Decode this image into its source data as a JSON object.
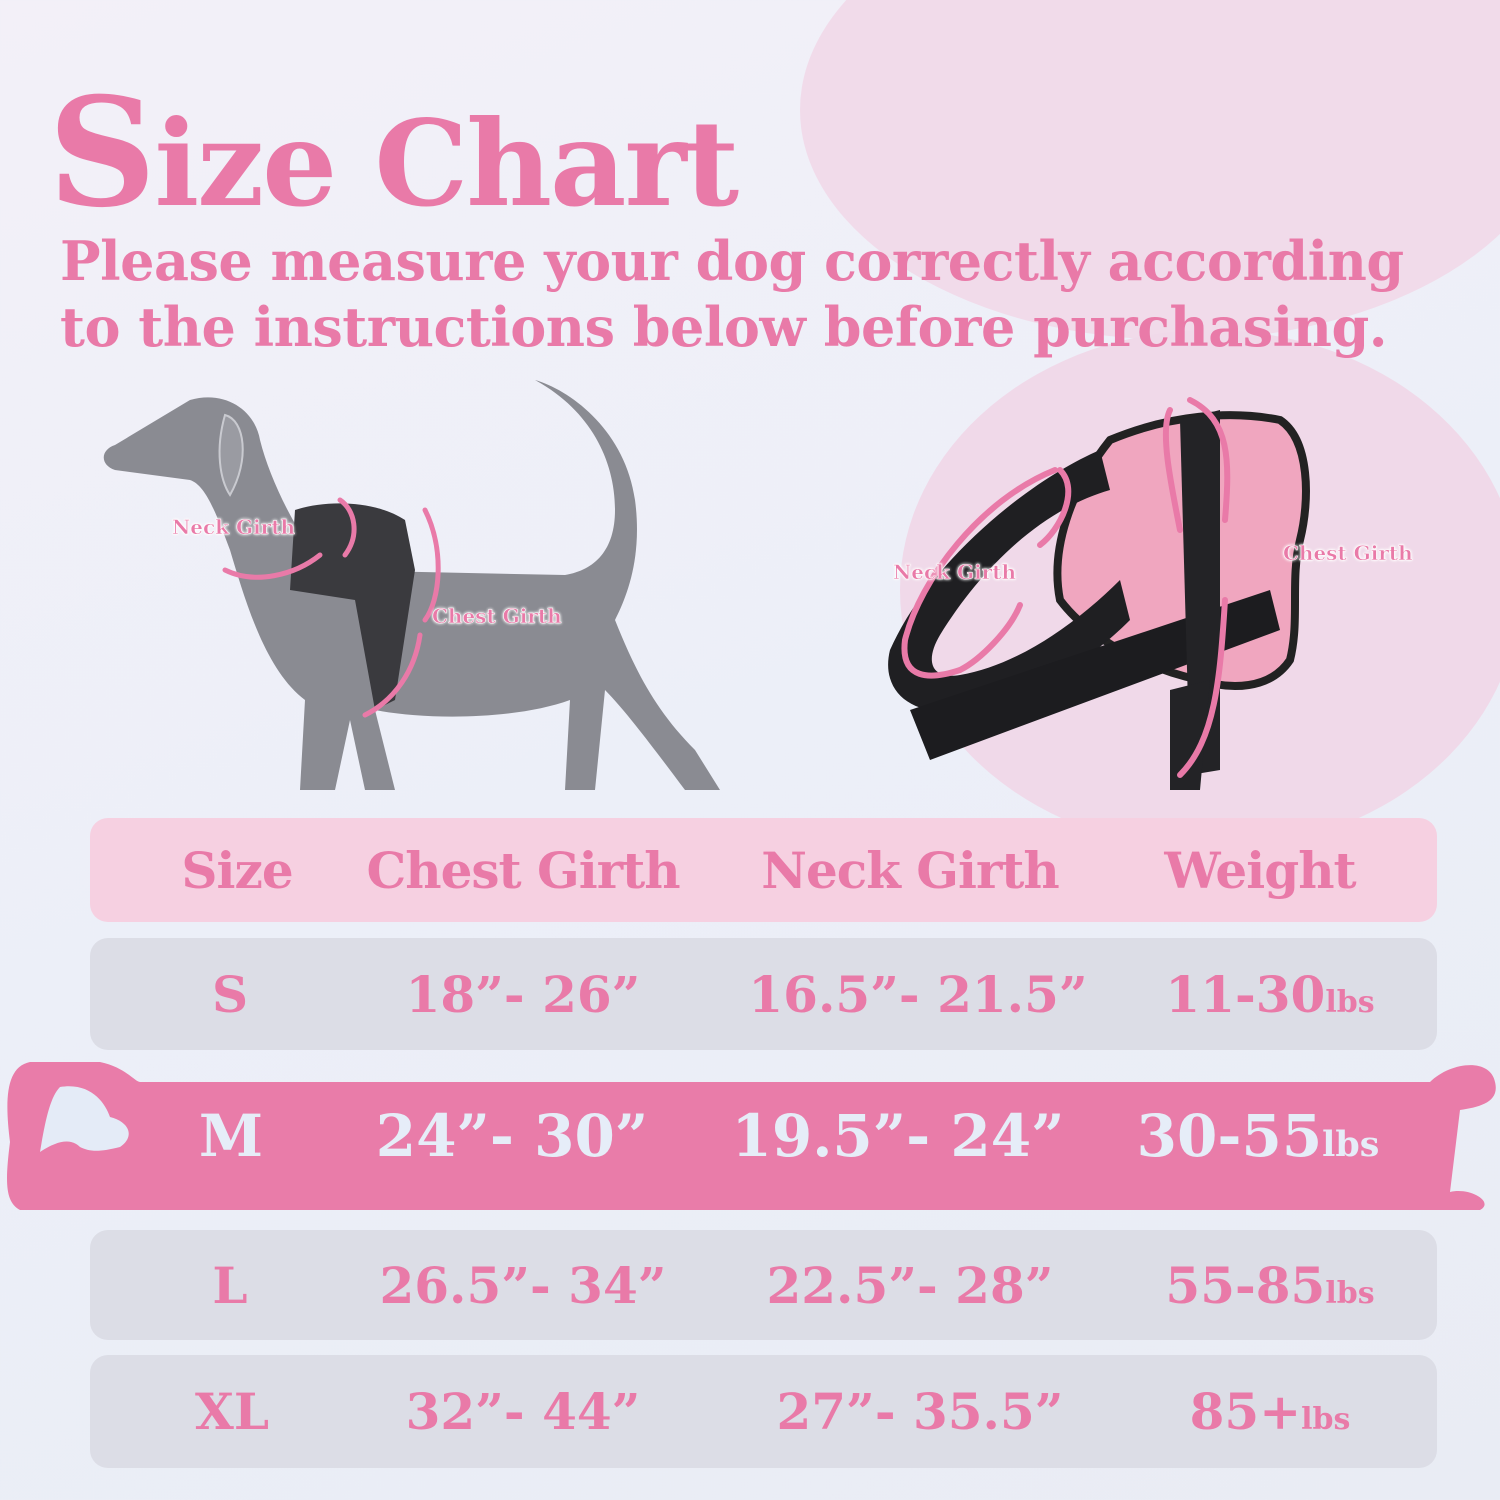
{
  "title": {
    "first_letter": "S",
    "rest": "ize Chart"
  },
  "subtitle": "Please measure your dog correctly according to the instructions below before purchasing.",
  "illustrations": {
    "dog": {
      "neck_label": "Neck Girth",
      "chest_label": "Chest Girth"
    },
    "harness": {
      "neck_label": "Neck Girth",
      "chest_label": "Chest Girth"
    }
  },
  "colors": {
    "accent": "#e97aa8",
    "highlight_row": "#e97ca9",
    "header_row": "#f6d0e1",
    "gray_row": "#dcdde6"
  },
  "table": {
    "headers": [
      "Size",
      "Chest Girth",
      "Neck Girth",
      "Weight"
    ],
    "rows": [
      {
        "size": "S",
        "chest": "18”- 26”",
        "neck": "16.5”- 21.5”",
        "weight": "11-30",
        "unit": "lbs"
      },
      {
        "size": "M",
        "chest": "24”- 30”",
        "neck": "19.5”- 24”",
        "weight": "30-55",
        "unit": "lbs",
        "highlighted": true
      },
      {
        "size": "L",
        "chest": "26.5”- 34”",
        "neck": "22.5”- 28”",
        "weight": "55-85",
        "unit": "lbs"
      },
      {
        "size": "XL",
        "chest": "32”- 44”",
        "neck": "27”- 35.5”",
        "weight": "85+",
        "unit": "lbs"
      }
    ]
  }
}
